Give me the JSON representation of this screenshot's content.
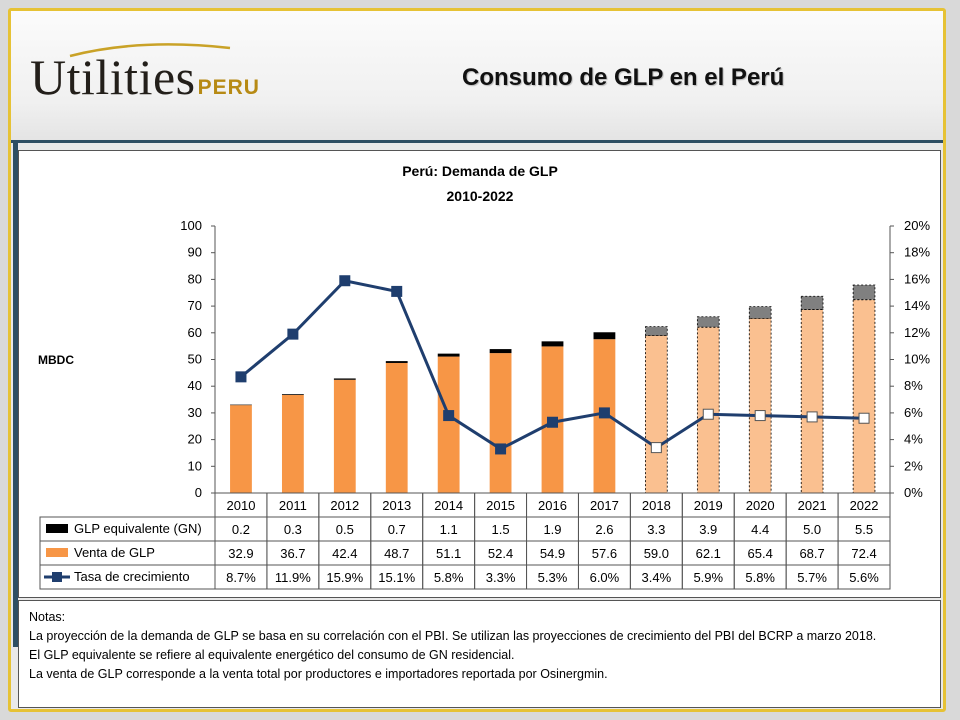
{
  "header": {
    "logo_main": "Utilities",
    "logo_sub": "PERU",
    "slide_title": "Consumo de GLP en el Perú"
  },
  "chart_data": {
    "type": "bar",
    "title": "Perú: Demanda  de GLP",
    "subtitle": "2010-2022",
    "ylabel": "MBDC",
    "ylim": [
      0,
      100
    ],
    "y2lim": [
      0,
      20
    ],
    "y_ticks": [
      "0",
      "10",
      "20",
      "30",
      "40",
      "50",
      "60",
      "70",
      "80",
      "90",
      "100"
    ],
    "y2_ticks": [
      "0%",
      "2%",
      "4%",
      "6%",
      "8%",
      "10%",
      "12%",
      "14%",
      "16%",
      "18%",
      "20%"
    ],
    "categories": [
      "2010",
      "2011",
      "2012",
      "2013",
      "2014",
      "2015",
      "2016",
      "2017",
      "2018",
      "2019",
      "2020",
      "2021",
      "2022"
    ],
    "projection_start_index": 8,
    "stacked": true,
    "series": [
      {
        "name": "Venta de GLP",
        "kind": "bar",
        "color": "#f79646",
        "projected_color": "#fac090",
        "values": [
          32.9,
          36.7,
          42.4,
          48.7,
          51.1,
          52.4,
          54.9,
          57.6,
          59.0,
          62.1,
          65.4,
          68.7,
          72.4
        ],
        "labels": [
          "32.9",
          "36.7",
          "42.4",
          "48.7",
          "51.1",
          "52.4",
          "54.9",
          "57.6",
          "59.0",
          "62.1",
          "65.4",
          "68.7",
          "72.4"
        ]
      },
      {
        "name": "GLP equivalente (GN)",
        "kind": "bar",
        "color": "#000000",
        "projected_color": "#808080",
        "values": [
          0.2,
          0.3,
          0.5,
          0.7,
          1.1,
          1.5,
          1.9,
          2.6,
          3.3,
          3.9,
          4.4,
          5.0,
          5.5
        ],
        "labels": [
          "0.2",
          "0.3",
          "0.5",
          "0.7",
          "1.1",
          "1.5",
          "1.9",
          "2.6",
          "3.3",
          "3.9",
          "4.4",
          "5.0",
          "5.5"
        ]
      },
      {
        "name": "Tasa de crecimiento",
        "kind": "line",
        "axis": "right",
        "color": "#1f3e6e",
        "values": [
          8.7,
          11.9,
          15.9,
          15.1,
          5.8,
          3.3,
          5.3,
          6.0,
          3.4,
          5.9,
          5.8,
          5.7,
          5.6
        ],
        "labels": [
          "8.7%",
          "11.9%",
          "15.9%",
          "15.1%",
          "5.8%",
          "3.3%",
          "5.3%",
          "6.0%",
          "3.4%",
          "5.9%",
          "5.8%",
          "5.7%",
          "5.6%"
        ]
      }
    ],
    "table_row_order": [
      "GLP equivalente (GN)",
      "Venta de GLP",
      "Tasa de crecimiento"
    ]
  },
  "notes": {
    "heading": "Notas:",
    "lines": [
      "La proyección de la demanda de GLP se basa en su correlación con el PBI. Se utilizan las proyecciones de crecimiento del PBI del BCRP a marzo 2018.",
      "El GLP equivalente se refiere al equivalente energético del consumo de GN residencial.",
      "La venta de GLP corresponde a la venta total por productores e importadores reportada por Osinergmin."
    ]
  }
}
